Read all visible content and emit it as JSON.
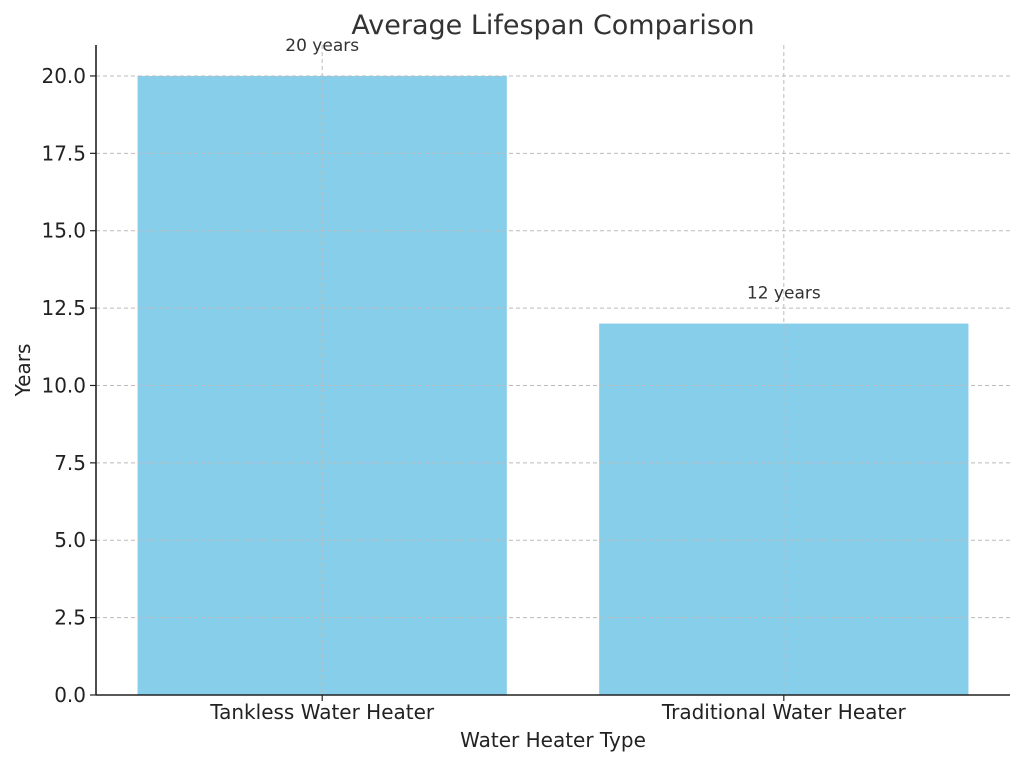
{
  "chart_data": {
    "type": "bar",
    "title": "Average Lifespan Comparison",
    "xlabel": "Water Heater Type",
    "ylabel": "Years",
    "categories": [
      "Tankless Water Heater",
      "Traditional Water Heater"
    ],
    "values": [
      20,
      12
    ],
    "data_labels": [
      "20 years",
      "12 years"
    ],
    "ylim": [
      0,
      21
    ],
    "yticks": [
      "0.0",
      "2.5",
      "5.0",
      "7.5",
      "10.0",
      "12.5",
      "15.0",
      "17.5",
      "20.0"
    ],
    "grid": true,
    "bar_color": "#87ceeb",
    "text_color": "#333333"
  }
}
